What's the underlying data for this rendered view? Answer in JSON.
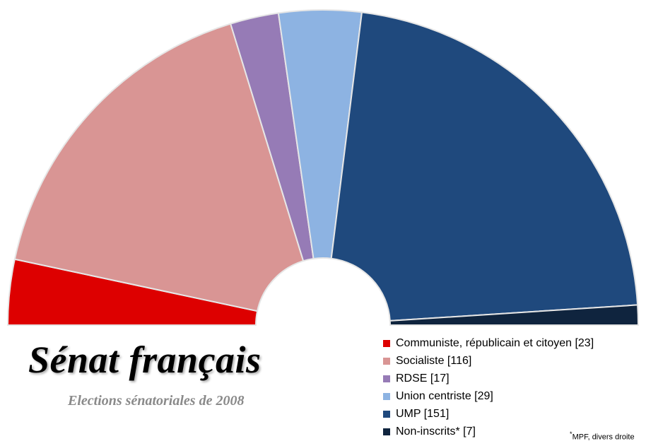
{
  "header": {
    "title": "Sénat français",
    "subtitle": "Elections sénatoriales de 2008"
  },
  "chart_data": {
    "type": "pie",
    "subtype": "semicircle",
    "title": "Sénat français",
    "subtitle": "Elections sénatoriales de 2008",
    "legend_position": "bottom-right",
    "series": [
      {
        "name": "Communiste, républicain et citoyen",
        "value": 23,
        "label": "Communiste, républicain et citoyen [23]",
        "color": "#dd0000"
      },
      {
        "name": "Socialiste",
        "value": 116,
        "label": "Socialiste [116]",
        "color": "#d99594"
      },
      {
        "name": "RDSE",
        "value": 17,
        "label": "RDSE [17]",
        "color": "#967bb6"
      },
      {
        "name": "Union centriste",
        "value": 29,
        "label": "Union centriste [29]",
        "color": "#8db3e2"
      },
      {
        "name": "UMP",
        "value": 151,
        "label": "UMP [151]",
        "color": "#1f497d"
      },
      {
        "name": "Non-inscrits*",
        "value": 7,
        "label": "Non-inscrits* [7]",
        "color": "#0f243e"
      }
    ]
  },
  "footnote": {
    "marker": "*",
    "text": "MPF, divers droite"
  }
}
